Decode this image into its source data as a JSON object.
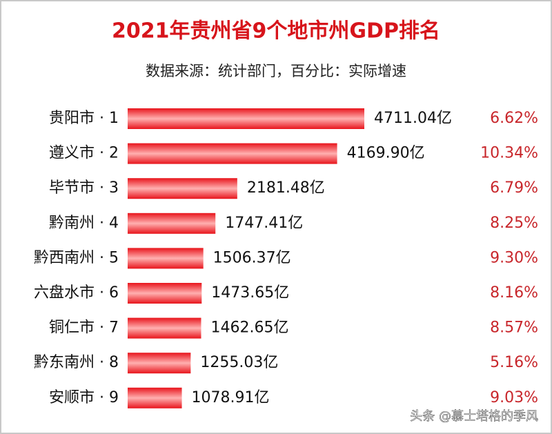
{
  "chart_data": {
    "type": "hbar",
    "title": "2021年贵州省9个地市州GDP排名",
    "subtitle": "数据来源：统计部门，百分比：实际增速",
    "categories": [
      "贵阳市 · 1",
      "遵义市 · 2",
      "毕节市 · 3",
      "黔南州 · 4",
      "黔西南州 · 5",
      "六盘水市 · 6",
      "铜仁市 · 7",
      "黔东南州 · 8",
      "安顺市 · 9"
    ],
    "values": [
      4711.04,
      4169.9,
      2181.48,
      1747.41,
      1506.37,
      1473.65,
      1462.65,
      1255.03,
      1078.91
    ],
    "value_labels": [
      "4711.04亿",
      "4169.90亿",
      "2181.48亿",
      "1747.41亿",
      "1506.37亿",
      "1473.65亿",
      "1462.65亿",
      "1255.03亿",
      "1078.91亿"
    ],
    "growth_labels": [
      "6.62%",
      "10.34%",
      "6.79%",
      "8.25%",
      "9.30%",
      "8.16%",
      "8.57%",
      "5.16%",
      "9.03%"
    ],
    "color": "#e8141b",
    "watermark": "头条 @慕士塔格的季风"
  }
}
